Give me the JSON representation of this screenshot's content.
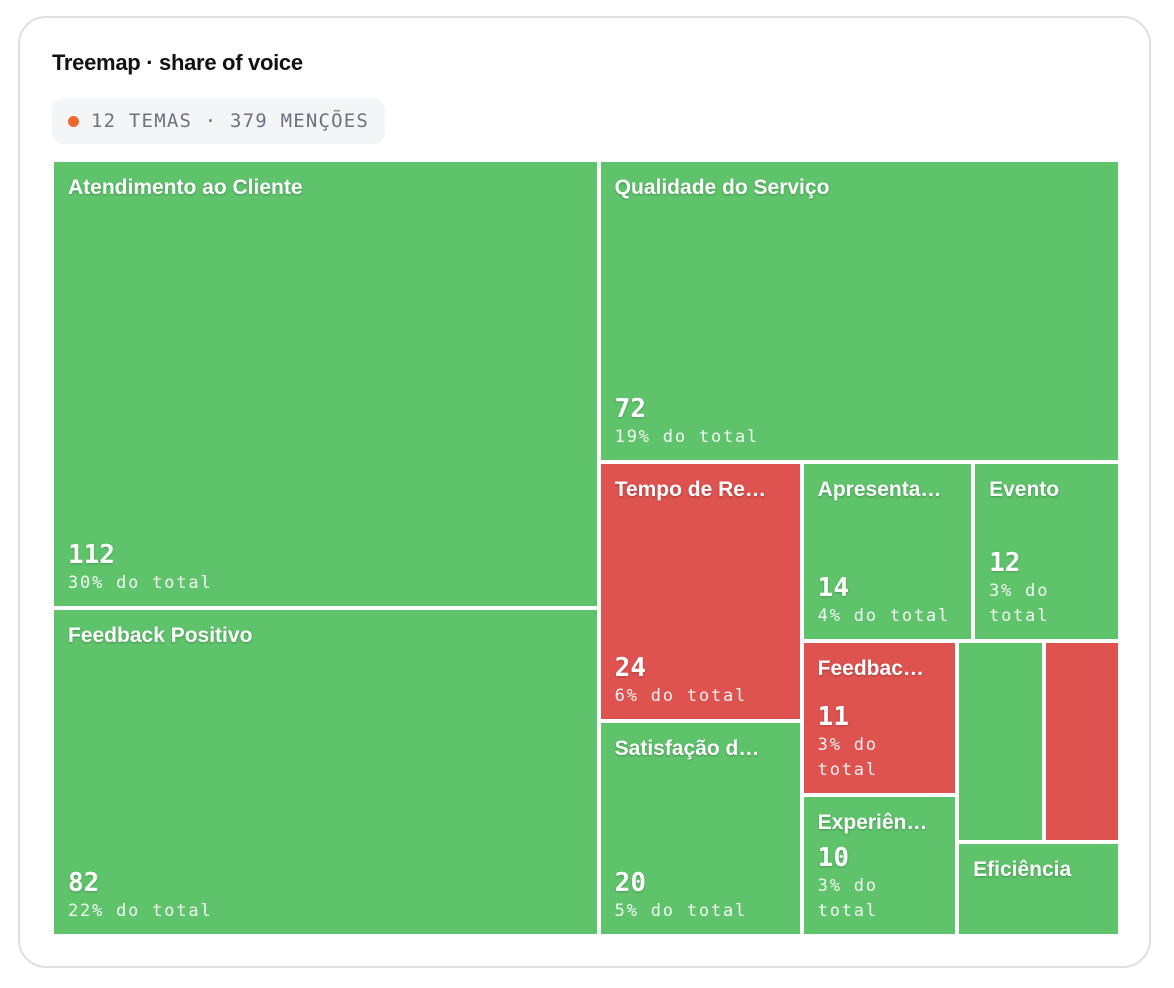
{
  "chart_data": {
    "type": "treemap",
    "title": "Treemap · share of voice",
    "subtitle": "12 TEMAS · 379 MENÇÕES",
    "categories": [
      "Atendimento ao Cliente",
      "Feedback Positivo",
      "Qualidade do Serviço",
      "Tempo de Re…",
      "Satisfação d…",
      "Apresenta…",
      "Evento",
      "Feedbac…",
      "Experiên…",
      null,
      null,
      "Eficiência"
    ],
    "values": [
      112,
      82,
      72,
      24,
      20,
      14,
      12,
      11,
      10,
      8,
      7,
      7
    ],
    "annotations": [
      "30% do total",
      "22% do total",
      "19% do total",
      "6% do total",
      "5% do total",
      "4% do total",
      "3% do total",
      "3% do total",
      "3% do total",
      null,
      null,
      null
    ],
    "colors": [
      "#5ec36b",
      "#5ec36b",
      "#5ec36b",
      "#de524f",
      "#5ec36b",
      "#5ec36b",
      "#5ec36b",
      "#de524f",
      "#5ec36b",
      "#5ec36b",
      "#de524f",
      "#5ec36b"
    ]
  }
}
